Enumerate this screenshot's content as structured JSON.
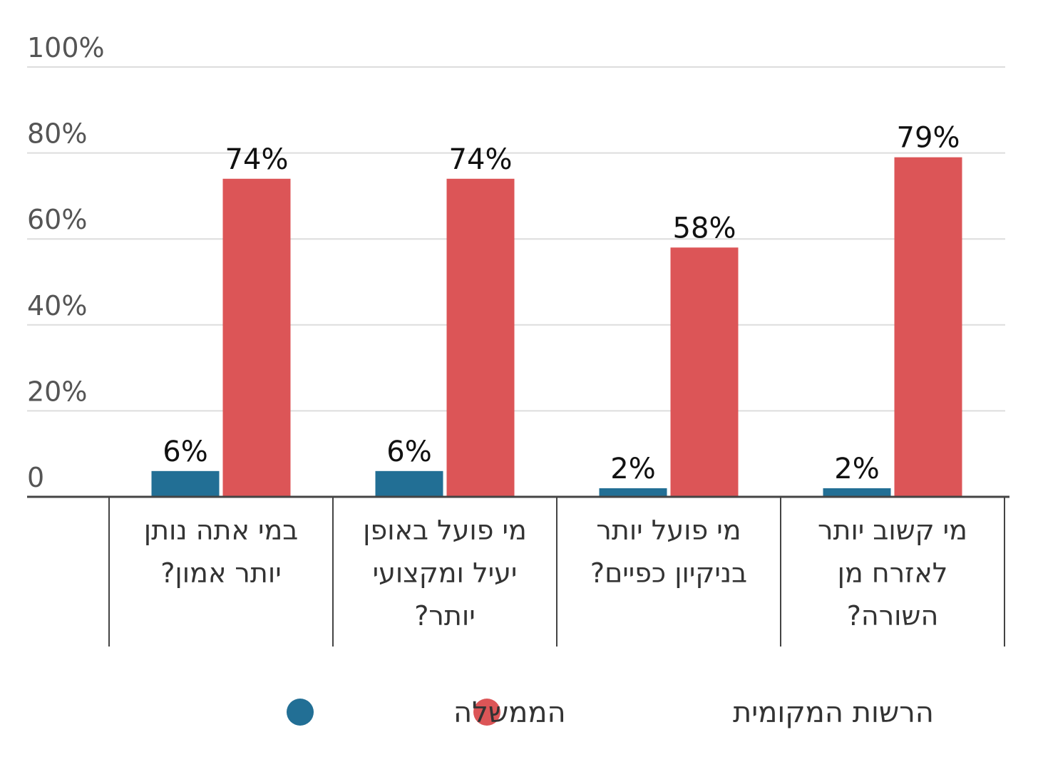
{
  "chart_data": {
    "type": "bar",
    "categories": [
      [
        "במי אתה נותן",
        "יותר אמון?"
      ],
      [
        "מי פועל באופן",
        "יעיל ומקצועי",
        "יותר?"
      ],
      [
        "מי פועל יותר",
        "בניקיון כפיים?"
      ],
      [
        "מי קשוב יותר",
        "לאזרח מן",
        "השורה?"
      ]
    ],
    "series": [
      {
        "name": "הממשלה",
        "values": [
          6,
          6,
          2,
          2
        ],
        "labels": [
          "6%",
          "6%",
          "2%",
          "2%"
        ],
        "color": "#226f95"
      },
      {
        "name": "הרשות המקומית",
        "values": [
          74,
          74,
          58,
          79
        ],
        "labels": [
          "74%",
          "74%",
          "58%",
          "79%"
        ],
        "color": "#dc5557"
      }
    ],
    "yticks": [
      {
        "value": 0,
        "label": "0"
      },
      {
        "value": 20,
        "label": "20%"
      },
      {
        "value": 40,
        "label": "40%"
      },
      {
        "value": 60,
        "label": "60%"
      },
      {
        "value": 80,
        "label": "80%"
      },
      {
        "value": 100,
        "label": "100%"
      }
    ],
    "ylim": [
      0,
      100
    ],
    "grid": true,
    "legend_position": "bottom"
  },
  "legend": {
    "items": [
      {
        "label": "הרשות המקומית",
        "color": "#dc5557"
      },
      {
        "label": "הממשלה",
        "color": "#226f95"
      }
    ]
  }
}
